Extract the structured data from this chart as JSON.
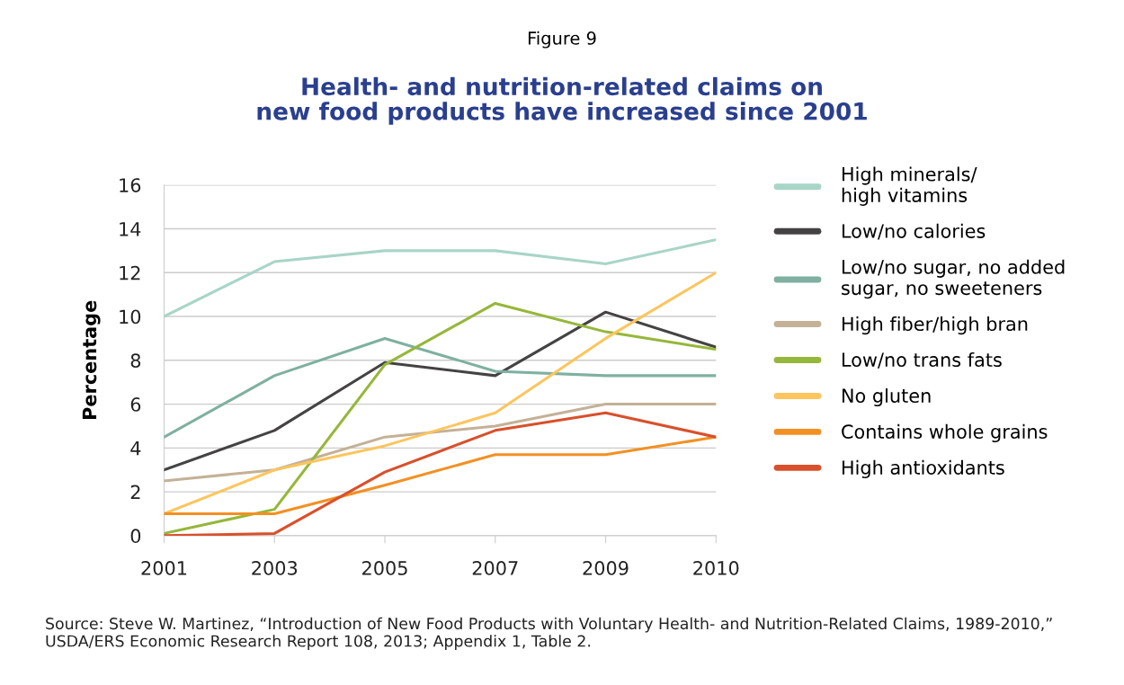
{
  "chart_data": {
    "type": "line",
    "subtitle": "Figure 9",
    "title": "Health- and nutrition-related claims on\nnew food products have increased since 2001",
    "ylabel": "Percentage",
    "categories": [
      "2001",
      "2003",
      "2005",
      "2007",
      "2009",
      "2010"
    ],
    "ylim": [
      0,
      16
    ],
    "yticks": [
      0,
      2,
      4,
      6,
      8,
      10,
      12,
      14,
      16
    ],
    "grid": "y",
    "legend": "right",
    "line_style": "solid",
    "marker": "none",
    "series": [
      {
        "name": "High minerals/\nhigh vitamins",
        "color": "#a8d5c8",
        "values": [
          10,
          12.5,
          13,
          13,
          12.4,
          13.5
        ]
      },
      {
        "name": "Low/no calories",
        "color": "#454244",
        "values": [
          3,
          4.8,
          7.9,
          7.3,
          10.2,
          8.6
        ]
      },
      {
        "name": "Low/no sugar, no added\nsugar, no sweeteners",
        "color": "#7fb0a1",
        "values": [
          4.5,
          7.3,
          9,
          7.5,
          7.3,
          7.3
        ]
      },
      {
        "name": "High fiber/high bran",
        "color": "#c4b196",
        "values": [
          2.5,
          3,
          4.5,
          5,
          6,
          6
        ]
      },
      {
        "name": "Low/no trans fats",
        "color": "#95b73a",
        "values": [
          0.1,
          1.2,
          7.8,
          10.6,
          9.3,
          8.5
        ]
      },
      {
        "name": "No gluten",
        "color": "#fdc55e",
        "values": [
          1,
          3,
          4.1,
          5.6,
          9,
          12
        ]
      },
      {
        "name": "Contains whole grains",
        "color": "#f39022",
        "values": [
          1,
          1,
          2.3,
          3.7,
          3.7,
          4.5
        ]
      },
      {
        "name": "High antioxidants",
        "color": "#d9502b",
        "values": [
          0,
          0.1,
          2.9,
          4.8,
          5.6,
          4.5
        ]
      }
    ],
    "annotations": [
      "Source: Steve W. Martinez, “Introduction of New Food Products with Voluntary Health- and Nutrition-Related Claims, 1989-2010,” USDA/ERS Economic Research Report 108, 2013; Appendix 1, Table 2."
    ]
  }
}
